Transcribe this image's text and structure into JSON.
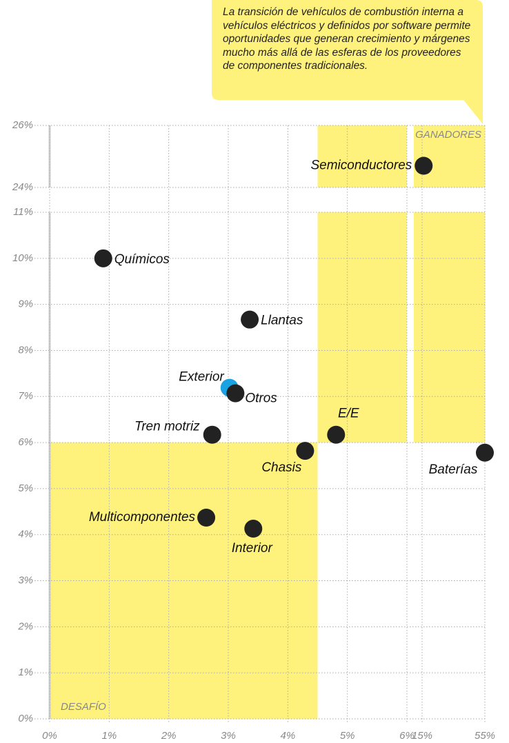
{
  "chart_data": {
    "type": "scatter",
    "annotation": "La transición de vehículos de combustión interna a vehículos eléctricos y definidos por software permite oportunidades que generan crecimiento y márgenes mucho más allá de las esferas de los proveedores de componentes tradicionales.",
    "quadrant_labels": [
      "GANADORES",
      "DESAFÍO"
    ],
    "quadrant_split": {
      "x": 4.5,
      "y": 6
    },
    "highlight_color": "#fff27c",
    "x_segments": [
      {
        "xlim": [
          0,
          6
        ],
        "xticks": [
          {
            "value": 0,
            "label": "0%"
          },
          {
            "value": 1,
            "label": "1%"
          },
          {
            "value": 2,
            "label": "2%"
          },
          {
            "value": 3,
            "label": "3%"
          },
          {
            "value": 4,
            "label": "4%"
          },
          {
            "value": 5,
            "label": "5%"
          },
          {
            "value": 6,
            "label": "6%"
          }
        ]
      },
      {
        "xlim": [
          15,
          55
        ],
        "xticks": [
          {
            "value": 15,
            "label": "15%"
          },
          {
            "value": 55,
            "label": "55%"
          }
        ]
      }
    ],
    "y_segments": [
      {
        "ylim": [
          0,
          11
        ],
        "yticks": [
          {
            "value": 0,
            "label": "0%"
          },
          {
            "value": 1,
            "label": "1%"
          },
          {
            "value": 2,
            "label": "2%"
          },
          {
            "value": 3,
            "label": "3%"
          },
          {
            "value": 4,
            "label": "4%"
          },
          {
            "value": 5,
            "label": "5%"
          },
          {
            "value": 6,
            "label": "6%"
          },
          {
            "value": 7,
            "label": "7%"
          },
          {
            "value": 8,
            "label": "8%"
          },
          {
            "value": 9,
            "label": "9%"
          },
          {
            "value": 10,
            "label": "10%"
          },
          {
            "value": 11,
            "label": "11%"
          }
        ]
      },
      {
        "ylim": [
          24,
          26
        ],
        "yticks": [
          {
            "value": 24,
            "label": "24%"
          },
          {
            "value": 26,
            "label": "26%"
          }
        ]
      }
    ],
    "points": [
      {
        "name": "Semiconductores",
        "x": 16,
        "y": 24.7,
        "color": "#222222"
      },
      {
        "name": "Químicos",
        "x": 0.9,
        "y": 10.0,
        "color": "#222222"
      },
      {
        "name": "Llantas",
        "x": 3.36,
        "y": 8.67,
        "color": "#222222"
      },
      {
        "name": "Exterior",
        "x": 3.02,
        "y": 7.19,
        "color": "#1aa3e0"
      },
      {
        "name": "Otros",
        "x": 3.12,
        "y": 7.07,
        "color": "#222222"
      },
      {
        "name": "Tren motriz",
        "x": 2.73,
        "y": 6.17,
        "color": "#222222"
      },
      {
        "name": "Chasis",
        "x": 4.29,
        "y": 5.82,
        "color": "#222222"
      },
      {
        "name": "E/E",
        "x": 4.81,
        "y": 6.17,
        "color": "#222222"
      },
      {
        "name": "Baterías",
        "x": 55,
        "y": 5.78,
        "color": "#222222"
      },
      {
        "name": "Multicomponentes",
        "x": 2.63,
        "y": 4.37,
        "color": "#222222"
      },
      {
        "name": "Interior",
        "x": 3.42,
        "y": 4.13,
        "color": "#222222"
      }
    ]
  }
}
